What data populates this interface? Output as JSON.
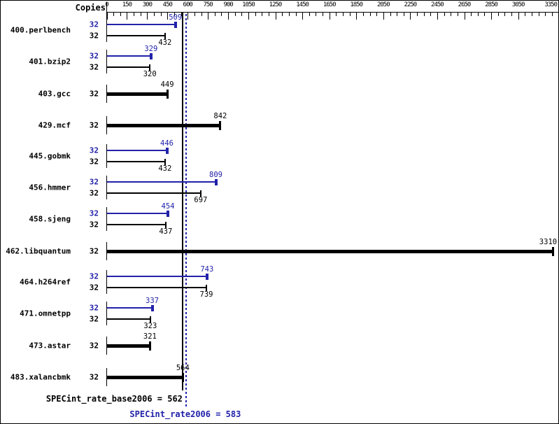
{
  "header": {
    "copies_label": "Copies"
  },
  "chart_data": {
    "type": "bar",
    "orientation": "horizontal",
    "x_axis": {
      "min": 0,
      "max": 3350,
      "minor_tick_step": 50,
      "tick_labels": [
        0,
        150,
        300,
        450,
        600,
        750,
        900,
        1050,
        1250,
        1450,
        1650,
        1850,
        2050,
        2250,
        2450,
        2650,
        2850,
        3050,
        3350
      ]
    },
    "series_colors": {
      "peak": "#2222aa",
      "base": "#000000"
    },
    "benchmarks": [
      {
        "name": "400.perlbench",
        "copies": 32,
        "peak": 509,
        "base": 432
      },
      {
        "name": "401.bzip2",
        "copies": 32,
        "peak": 329,
        "base": 320
      },
      {
        "name": "403.gcc",
        "copies": 32,
        "peak": null,
        "base": 449
      },
      {
        "name": "429.mcf",
        "copies": 32,
        "peak": null,
        "base": 842
      },
      {
        "name": "445.gobmk",
        "copies": 32,
        "peak": 446,
        "base": 432
      },
      {
        "name": "456.hmmer",
        "copies": 32,
        "peak": 809,
        "base": 697
      },
      {
        "name": "458.sjeng",
        "copies": 32,
        "peak": 454,
        "base": 437
      },
      {
        "name": "462.libquantum",
        "copies": 32,
        "peak": null,
        "base": 3310
      },
      {
        "name": "464.h264ref",
        "copies": 32,
        "peak": 743,
        "base": 739
      },
      {
        "name": "471.omnetpp",
        "copies": 32,
        "peak": 337,
        "base": 323
      },
      {
        "name": "473.astar",
        "copies": 32,
        "peak": null,
        "base": 321
      },
      {
        "name": "483.xalancbmk",
        "copies": 32,
        "peak": null,
        "base": 564
      }
    ],
    "reference_lines": [
      {
        "value": 562,
        "style": "solid",
        "color": "#000000"
      },
      {
        "value": 583,
        "style": "dotted",
        "color": "#2222aa"
      }
    ],
    "summary": {
      "base_text": "SPECint_rate_base2006 = 562",
      "peak_text": "SPECint_rate2006 = 583",
      "base_value": 562,
      "peak_value": 583
    }
  }
}
